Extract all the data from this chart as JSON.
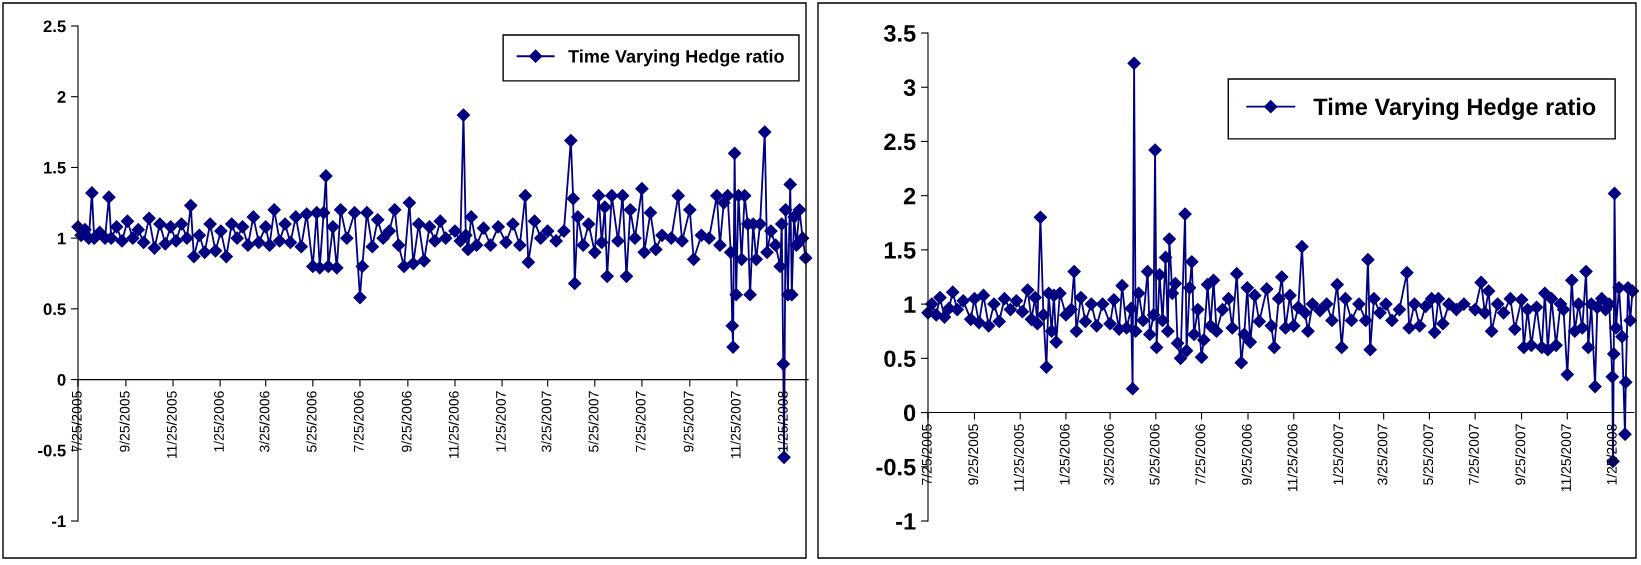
{
  "chart_data": [
    {
      "type": "line",
      "marker": "diamond",
      "legend": "top right",
      "xlim": [
        "2005-07-25",
        "2008-02-25"
      ],
      "ylim": [
        -1,
        2.5
      ],
      "yticks": [
        -1,
        -0.5,
        0,
        0.5,
        1,
        1.5,
        2,
        2.5
      ],
      "xticks": [
        {
          "value": "2005-07-25",
          "label": "7/25/2005"
        },
        {
          "value": "2005-09-25",
          "label": "9/25/2005"
        },
        {
          "value": "2005-11-25",
          "label": "11/25/2005"
        },
        {
          "value": "2006-01-25",
          "label": "1/25/2006"
        },
        {
          "value": "2006-03-25",
          "label": "3/25/2006"
        },
        {
          "value": "2006-05-25",
          "label": "5/25/2006"
        },
        {
          "value": "2006-07-25",
          "label": "7/25/2006"
        },
        {
          "value": "2006-09-25",
          "label": "9/25/2006"
        },
        {
          "value": "2006-11-25",
          "label": "11/25/2006"
        },
        {
          "value": "2007-01-25",
          "label": "1/25/2007"
        },
        {
          "value": "2007-03-25",
          "label": "3/25/2007"
        },
        {
          "value": "2007-05-25",
          "label": "5/25/2007"
        },
        {
          "value": "2007-07-25",
          "label": "7/25/2007"
        },
        {
          "value": "2007-09-25",
          "label": "9/25/2007"
        },
        {
          "value": "2007-11-25",
          "label": "11/25/2007"
        },
        {
          "value": "2008-01-25",
          "label": "1/25/2008"
        }
      ],
      "x": [
        "2005-07-25",
        "2005-07-29",
        "2005-08-03",
        "2005-08-08",
        "2005-08-12",
        "2005-08-15",
        "2005-08-22",
        "2005-08-29",
        "2005-09-03",
        "2005-09-06",
        "2005-09-13",
        "2005-09-20",
        "2005-09-27",
        "2005-10-04",
        "2005-10-11",
        "2005-10-18",
        "2005-10-25",
        "2005-11-01",
        "2005-11-08",
        "2005-11-15",
        "2005-11-22",
        "2005-11-29",
        "2005-12-06",
        "2005-12-13",
        "2005-12-18",
        "2005-12-22",
        "2005-12-29",
        "2006-01-05",
        "2006-01-12",
        "2006-01-19",
        "2006-01-26",
        "2006-02-02",
        "2006-02-09",
        "2006-02-16",
        "2006-02-23",
        "2006-03-02",
        "2006-03-09",
        "2006-03-16",
        "2006-03-25",
        "2006-03-30",
        "2006-04-05",
        "2006-04-12",
        "2006-04-19",
        "2006-04-26",
        "2006-05-03",
        "2006-05-10",
        "2006-05-17",
        "2006-05-25",
        "2006-05-30",
        "2006-06-03",
        "2006-06-08",
        "2006-06-11",
        "2006-06-14",
        "2006-06-20",
        "2006-06-25",
        "2006-06-30",
        "2006-07-08",
        "2006-07-18",
        "2006-07-25",
        "2006-07-28",
        "2006-08-03",
        "2006-08-10",
        "2006-08-17",
        "2006-08-24",
        "2006-09-01",
        "2006-09-08",
        "2006-09-13",
        "2006-09-20",
        "2006-09-27",
        "2006-10-02",
        "2006-10-09",
        "2006-10-16",
        "2006-10-23",
        "2006-10-30",
        "2006-11-06",
        "2006-11-13",
        "2006-11-25",
        "2006-12-02",
        "2006-12-06",
        "2006-12-09",
        "2006-12-12",
        "2006-12-16",
        "2006-12-23",
        "2007-01-01",
        "2007-01-10",
        "2007-01-20",
        "2007-01-30",
        "2007-02-08",
        "2007-02-17",
        "2007-02-24",
        "2007-02-28",
        "2007-03-08",
        "2007-03-16",
        "2007-03-25",
        "2007-04-05",
        "2007-04-15",
        "2007-04-24",
        "2007-04-27",
        "2007-04-29",
        "2007-05-03",
        "2007-05-10",
        "2007-05-17",
        "2007-05-25",
        "2007-05-30",
        "2007-06-03",
        "2007-06-07",
        "2007-06-10",
        "2007-06-16",
        "2007-06-24",
        "2007-06-30",
        "2007-07-05",
        "2007-07-10",
        "2007-07-16",
        "2007-07-25",
        "2007-07-28",
        "2007-08-05",
        "2007-08-12",
        "2007-08-20",
        "2007-09-01",
        "2007-09-10",
        "2007-09-15",
        "2007-09-25",
        "2007-09-30",
        "2007-10-10",
        "2007-10-20",
        "2007-10-30",
        "2007-11-03",
        "2007-11-08",
        "2007-11-13",
        "2007-11-17",
        "2007-11-19",
        "2007-11-20",
        "2007-11-22",
        "2007-11-24",
        "2007-11-27",
        "2007-12-01",
        "2007-12-05",
        "2007-12-09",
        "2007-12-12",
        "2007-12-16",
        "2007-12-20",
        "2007-12-25",
        "2007-12-31",
        "2008-01-03",
        "2008-01-08",
        "2008-01-14",
        "2008-01-20",
        "2008-01-22",
        "2008-01-24",
        "2008-01-25",
        "2008-01-27",
        "2008-01-30",
        "2008-02-02",
        "2008-02-04",
        "2008-02-07",
        "2008-02-10",
        "2008-02-14",
        "2008-02-18",
        "2008-02-22"
      ],
      "series": [
        {
          "name": "Time Varying Hedge ratio",
          "color": "#000080",
          "values": [
            1.08,
            1.02,
            1.06,
            1.0,
            1.32,
            1.0,
            1.04,
            1.0,
            1.29,
            1.0,
            1.08,
            0.98,
            1.12,
            1.0,
            1.06,
            0.97,
            1.14,
            0.93,
            1.1,
            0.96,
            1.08,
            0.98,
            1.1,
            1.0,
            1.23,
            0.87,
            1.02,
            0.9,
            1.1,
            0.91,
            1.05,
            0.87,
            1.1,
            1.0,
            1.08,
            0.95,
            1.15,
            0.97,
            1.08,
            0.95,
            1.2,
            0.98,
            1.1,
            0.97,
            1.15,
            0.94,
            1.17,
            0.8,
            1.18,
            0.79,
            1.18,
            1.44,
            0.8,
            1.08,
            0.79,
            1.2,
            1.0,
            1.18,
            0.58,
            0.8,
            1.18,
            0.94,
            1.13,
            1.0,
            1.05,
            1.2,
            0.95,
            0.8,
            1.25,
            0.82,
            1.1,
            0.84,
            1.08,
            0.98,
            1.12,
            1.0,
            1.05,
            0.98,
            1.87,
            1.02,
            0.92,
            1.15,
            0.95,
            1.07,
            0.95,
            1.08,
            0.97,
            1.1,
            0.95,
            1.3,
            0.83,
            1.12,
            1.0,
            1.05,
            0.98,
            1.05,
            1.69,
            1.28,
            0.68,
            1.15,
            0.95,
            1.1,
            0.9,
            1.3,
            0.97,
            1.22,
            0.73,
            1.3,
            0.98,
            1.3,
            0.73,
            1.2,
            1.0,
            1.35,
            0.9,
            1.18,
            0.92,
            1.02,
            1.0,
            1.3,
            0.98,
            1.2,
            0.85,
            1.02,
            1.0,
            1.3,
            0.95,
            1.25,
            1.3,
            0.9,
            0.38,
            0.23,
            1.6,
            0.6,
            1.3,
            0.85,
            1.3,
            1.1,
            0.6,
            1.1,
            0.85,
            1.1,
            1.75,
            0.9,
            1.05,
            0.95,
            0.8,
            1.1,
            0.11,
            -0.55,
            1.2,
            0.6,
            1.38,
            0.6,
            1.15,
            0.95,
            1.2,
            1.0,
            0.86
          ]
        }
      ]
    },
    {
      "type": "line",
      "marker": "diamond",
      "legend": "top right",
      "xlim": [
        "2005-07-25",
        "2008-02-22"
      ],
      "ylim": [
        -1,
        3.5
      ],
      "yticks": [
        -1,
        -0.5,
        0,
        0.5,
        1,
        1.5,
        2,
        2.5,
        3,
        3.5
      ],
      "xticks": [
        {
          "value": "2005-07-25",
          "label": "7/25/2005"
        },
        {
          "value": "2005-09-25",
          "label": "9/25/2005"
        },
        {
          "value": "2005-11-25",
          "label": "11/25/2005"
        },
        {
          "value": "2006-01-25",
          "label": "1/25/2006"
        },
        {
          "value": "2006-03-25",
          "label": "3/25/2006"
        },
        {
          "value": "2006-05-25",
          "label": "5/25/2006"
        },
        {
          "value": "2006-07-25",
          "label": "7/25/2006"
        },
        {
          "value": "2006-09-25",
          "label": "9/25/2006"
        },
        {
          "value": "2006-11-25",
          "label": "11/25/2006"
        },
        {
          "value": "2007-01-25",
          "label": "1/25/2007"
        },
        {
          "value": "2007-03-25",
          "label": "3/25/2007"
        },
        {
          "value": "2007-05-25",
          "label": "5/25/2007"
        },
        {
          "value": "2007-07-25",
          "label": "7/25/2007"
        },
        {
          "value": "2007-09-25",
          "label": "9/25/2007"
        },
        {
          "value": "2007-11-25",
          "label": "11/25/2007"
        },
        {
          "value": "2008-01-25",
          "label": "1/25/2008"
        }
      ],
      "x": [
        "2005-07-25",
        "2005-07-30",
        "2005-08-05",
        "2005-08-10",
        "2005-08-16",
        "2005-08-22",
        "2005-08-27",
        "2005-09-02",
        "2005-09-10",
        "2005-09-20",
        "2005-09-25",
        "2005-10-01",
        "2005-10-07",
        "2005-10-14",
        "2005-10-21",
        "2005-10-28",
        "2005-11-04",
        "2005-11-12",
        "2005-11-20",
        "2005-11-28",
        "2005-12-05",
        "2005-12-10",
        "2005-12-15",
        "2005-12-18",
        "2005-12-22",
        "2005-12-26",
        "2005-12-30",
        "2006-01-02",
        "2006-01-06",
        "2006-01-09",
        "2006-01-12",
        "2006-01-17",
        "2006-01-25",
        "2006-02-01",
        "2006-02-05",
        "2006-02-08",
        "2006-02-14",
        "2006-02-20",
        "2006-02-28",
        "2006-03-07",
        "2006-03-15",
        "2006-03-25",
        "2006-03-30",
        "2006-04-06",
        "2006-04-10",
        "2006-04-16",
        "2006-04-22",
        "2006-04-24",
        "2006-04-26",
        "2006-04-28",
        "2006-05-02",
        "2006-05-08",
        "2006-05-14",
        "2006-05-17",
        "2006-05-22",
        "2006-05-24",
        "2006-05-26",
        "2006-05-30",
        "2006-06-03",
        "2006-06-07",
        "2006-06-10",
        "2006-06-12",
        "2006-06-16",
        "2006-06-20",
        "2006-06-23",
        "2006-06-27",
        "2006-07-03",
        "2006-07-05",
        "2006-07-09",
        "2006-07-12",
        "2006-07-15",
        "2006-07-20",
        "2006-07-25",
        "2006-07-28",
        "2006-08-02",
        "2006-08-06",
        "2006-08-10",
        "2006-08-14",
        "2006-08-22",
        "2006-08-30",
        "2006-09-04",
        "2006-09-10",
        "2006-09-16",
        "2006-09-20",
        "2006-09-24",
        "2006-09-28",
        "2006-10-04",
        "2006-10-10",
        "2006-10-20",
        "2006-10-26",
        "2006-10-30",
        "2006-11-05",
        "2006-11-09",
        "2006-11-14",
        "2006-11-20",
        "2006-11-25",
        "2006-12-01",
        "2006-12-06",
        "2006-12-10",
        "2006-12-14",
        "2006-12-20",
        "2006-12-30",
        "2007-01-08",
        "2007-01-15",
        "2007-01-22",
        "2007-01-28",
        "2007-02-02",
        "2007-02-10",
        "2007-02-20",
        "2007-03-01",
        "2007-03-04",
        "2007-03-07",
        "2007-03-12",
        "2007-03-20",
        "2007-03-28",
        "2007-04-05",
        "2007-04-15",
        "2007-04-25",
        "2007-04-28",
        "2007-05-05",
        "2007-05-12",
        "2007-05-20",
        "2007-05-28",
        "2007-06-01",
        "2007-06-06",
        "2007-06-12",
        "2007-06-20",
        "2007-06-30",
        "2007-07-10",
        "2007-07-25",
        "2007-08-02",
        "2007-08-07",
        "2007-08-12",
        "2007-08-16",
        "2007-08-24",
        "2007-09-01",
        "2007-09-10",
        "2007-09-16",
        "2007-09-25",
        "2007-09-28",
        "2007-10-03",
        "2007-10-08",
        "2007-10-15",
        "2007-10-22",
        "2007-10-26",
        "2007-10-30",
        "2007-11-04",
        "2007-11-10",
        "2007-11-16",
        "2007-11-20",
        "2007-11-25",
        "2007-12-01",
        "2007-12-05",
        "2007-12-10",
        "2007-12-15",
        "2007-12-20",
        "2007-12-23",
        "2007-12-27",
        "2008-01-01",
        "2008-01-04",
        "2008-01-10",
        "2008-01-15",
        "2008-01-20",
        "2008-01-24",
        "2008-01-25",
        "2008-01-26",
        "2008-01-27",
        "2008-01-29",
        "2008-02-02",
        "2008-02-06",
        "2008-02-10",
        "2008-02-11",
        "2008-02-14",
        "2008-02-17",
        "2008-02-20"
      ],
      "series": [
        {
          "name": "Time Varying Hedge ratio",
          "color": "#000080",
          "values": [
            0.92,
            1.0,
            0.9,
            1.06,
            0.88,
            0.96,
            1.11,
            0.95,
            1.03,
            0.86,
            1.05,
            0.83,
            1.08,
            0.8,
            1.0,
            0.84,
            1.05,
            0.95,
            1.03,
            0.93,
            1.13,
            0.86,
            1.06,
            0.82,
            1.8,
            0.9,
            0.42,
            1.1,
            0.75,
            1.08,
            0.65,
            1.1,
            0.9,
            0.95,
            1.3,
            0.75,
            1.06,
            0.84,
            1.0,
            0.8,
            1.0,
            0.82,
            1.04,
            0.77,
            1.17,
            0.78,
            0.96,
            0.22,
            3.22,
            0.75,
            1.1,
            0.85,
            1.3,
            0.72,
            0.9,
            2.42,
            0.6,
            1.27,
            0.85,
            1.43,
            0.75,
            1.6,
            1.1,
            1.19,
            0.64,
            0.5,
            1.83,
            0.57,
            1.15,
            1.39,
            0.72,
            0.95,
            0.51,
            0.67,
            1.18,
            0.8,
            1.22,
            0.75,
            0.95,
            1.05,
            0.78,
            1.28,
            0.46,
            0.72,
            1.15,
            0.65,
            1.08,
            0.84,
            1.14,
            0.8,
            0.6,
            1.05,
            1.25,
            0.78,
            1.08,
            0.8,
            0.97,
            1.53,
            0.92,
            0.75,
            1.0,
            0.94,
            1.0,
            0.85,
            1.18,
            0.6,
            1.05,
            0.85,
            1.0,
            0.85,
            1.41,
            0.58,
            1.05,
            0.92,
            1.0,
            0.85,
            0.95,
            1.29,
            0.78,
            1.0,
            0.8,
            0.98,
            1.05,
            0.74,
            1.05,
            0.82,
            1.0,
            0.95,
            1.0,
            0.95,
            1.2,
            0.92,
            1.12,
            0.75,
            1.0,
            0.92,
            1.05,
            0.77,
            1.04,
            0.6,
            0.95,
            0.62,
            0.97,
            0.6,
            1.1,
            0.58,
            1.05,
            0.62,
            1.0,
            0.95,
            0.35,
            1.22,
            0.75,
            1.0,
            0.78,
            1.3,
            0.6,
            1.0,
            0.24,
            0.97,
            1.05,
            0.95,
            1.0,
            0.33,
            -0.45,
            0.54,
            2.02,
            0.78,
            1.15,
            0.7,
            -0.2,
            0.28,
            1.15,
            0.85,
            1.12
          ]
        }
      ]
    }
  ]
}
